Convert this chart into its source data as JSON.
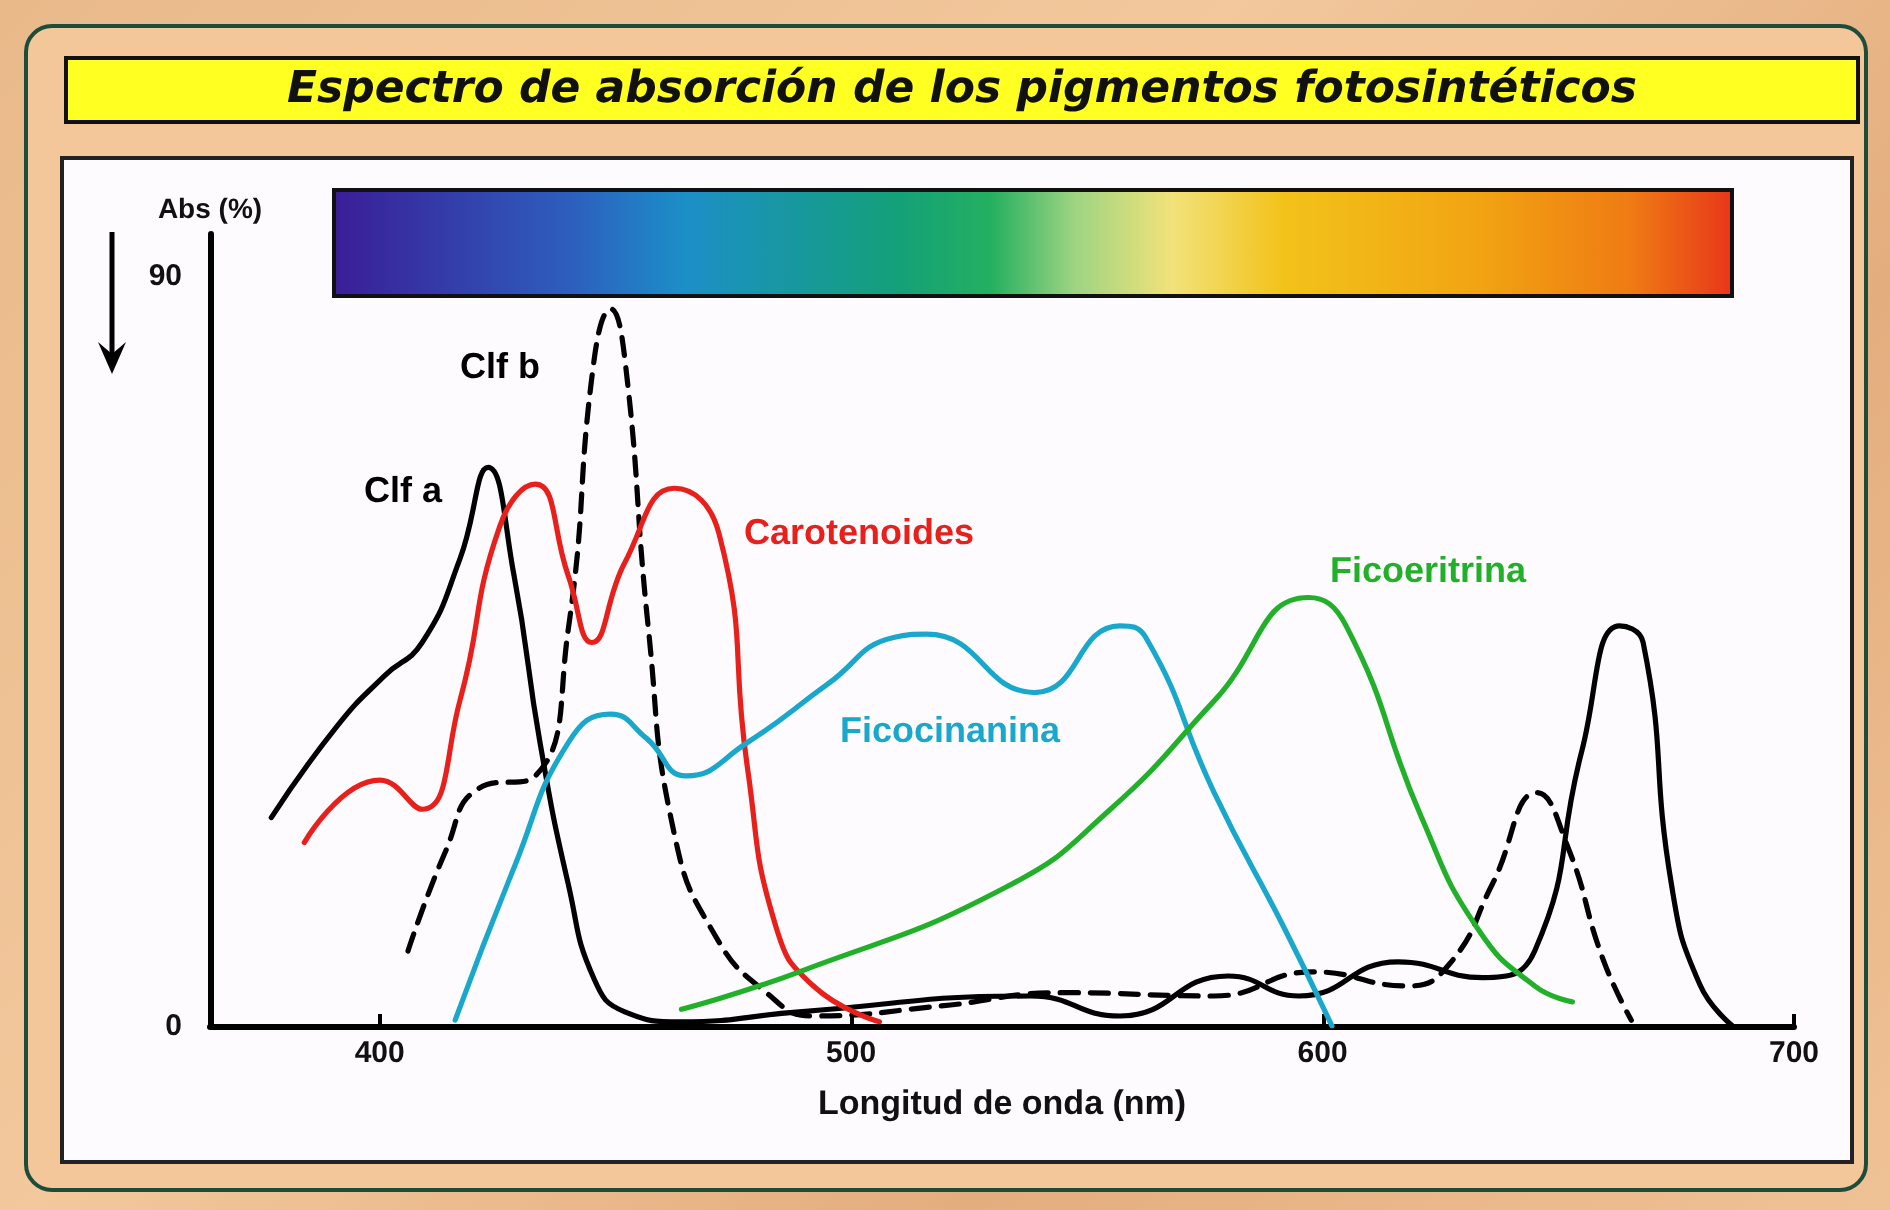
{
  "chart_data": {
    "type": "line",
    "title": "Espectro de absorción de los pigmentos fotosintéticos",
    "xlabel": "Longitud de onda (nm)",
    "ylabel": "Abs (%)",
    "xlim": [
      364,
      700
    ],
    "xticks": [
      400,
      500,
      600,
      700
    ],
    "ylim": [
      0,
      95
    ],
    "yticks": [
      0,
      90
    ],
    "grid": false,
    "legend": false,
    "marker": "none",
    "series": [
      {
        "name": "Clf a",
        "color": "#000000",
        "line_style": "solid",
        "x": [
          377,
          391,
          401,
          409,
          417,
          423,
          428.5,
          434,
          440,
          445.5,
          452,
          464,
          489,
          538,
          557,
          580,
          595,
          616,
          634,
          645,
          655,
          663,
          668,
          674,
          680,
          687
        ],
        "values": [
          25,
          36,
          42,
          46,
          56,
          67,
          54,
          34,
          17,
          5.6,
          1.7,
          0.5,
          1.7,
          3.6,
          1.2,
          6,
          3.6,
          7.7,
          5.8,
          9,
          33,
          48,
          46,
          17,
          5,
          0
        ]
      },
      {
        "name": "Clf b",
        "color": "#000000",
        "line_style": "dashed",
        "x": [
          406,
          414,
          421,
          433,
          440,
          445.5,
          449,
          452,
          457,
          462.5,
          471,
          482,
          492,
          519,
          545,
          577,
          598,
          618,
          627,
          636,
          645.5,
          652,
          659.5,
          665.5
        ],
        "values": [
          9,
          21,
          28.5,
          30,
          47.6,
          80,
          86,
          80,
          47.6,
          23,
          11,
          4,
          1.2,
          2.4,
          4,
          3.6,
          6.5,
          4.8,
          7.5,
          17,
          28,
          21.5,
          8,
          0.7
        ]
      },
      {
        "name": "Carotenoides",
        "color": "#e8201c",
        "line_style": "solid",
        "x": [
          384,
          400,
          409,
          417,
          425.5,
          433,
          440,
          445,
          452,
          462.5,
          472,
          478,
          484,
          492,
          506
        ],
        "values": [
          22,
          29.5,
          26,
          39,
          60,
          65,
          54,
          46,
          55.6,
          64.5,
          59,
          31,
          12,
          4.8,
          0.5
        ]
      },
      {
        "name": "Ficocinanina",
        "color": "#1aa7cc",
        "line_style": "solid",
        "x": [
          416,
          428.5,
          440,
          449,
          456.6,
          465,
          478,
          495,
          509,
          516,
          539,
          557,
          562.5,
          577,
          592,
          602
        ],
        "values": [
          0.7,
          19,
          34,
          37.4,
          34.5,
          30,
          34,
          41,
          46.6,
          47,
          40,
          48,
          46.6,
          28,
          11.6,
          0
        ]
      },
      {
        "name": "Ficoeritrina",
        "color": "#22b02a",
        "line_style": "solid",
        "x": [
          464,
          489,
          533,
          555,
          577,
          597,
          605,
          621,
          633,
          645,
          653
        ],
        "values": [
          2,
          6.5,
          16.7,
          26,
          39,
          51.4,
          48,
          25,
          11.6,
          4.8,
          2.9
        ]
      }
    ]
  }
}
